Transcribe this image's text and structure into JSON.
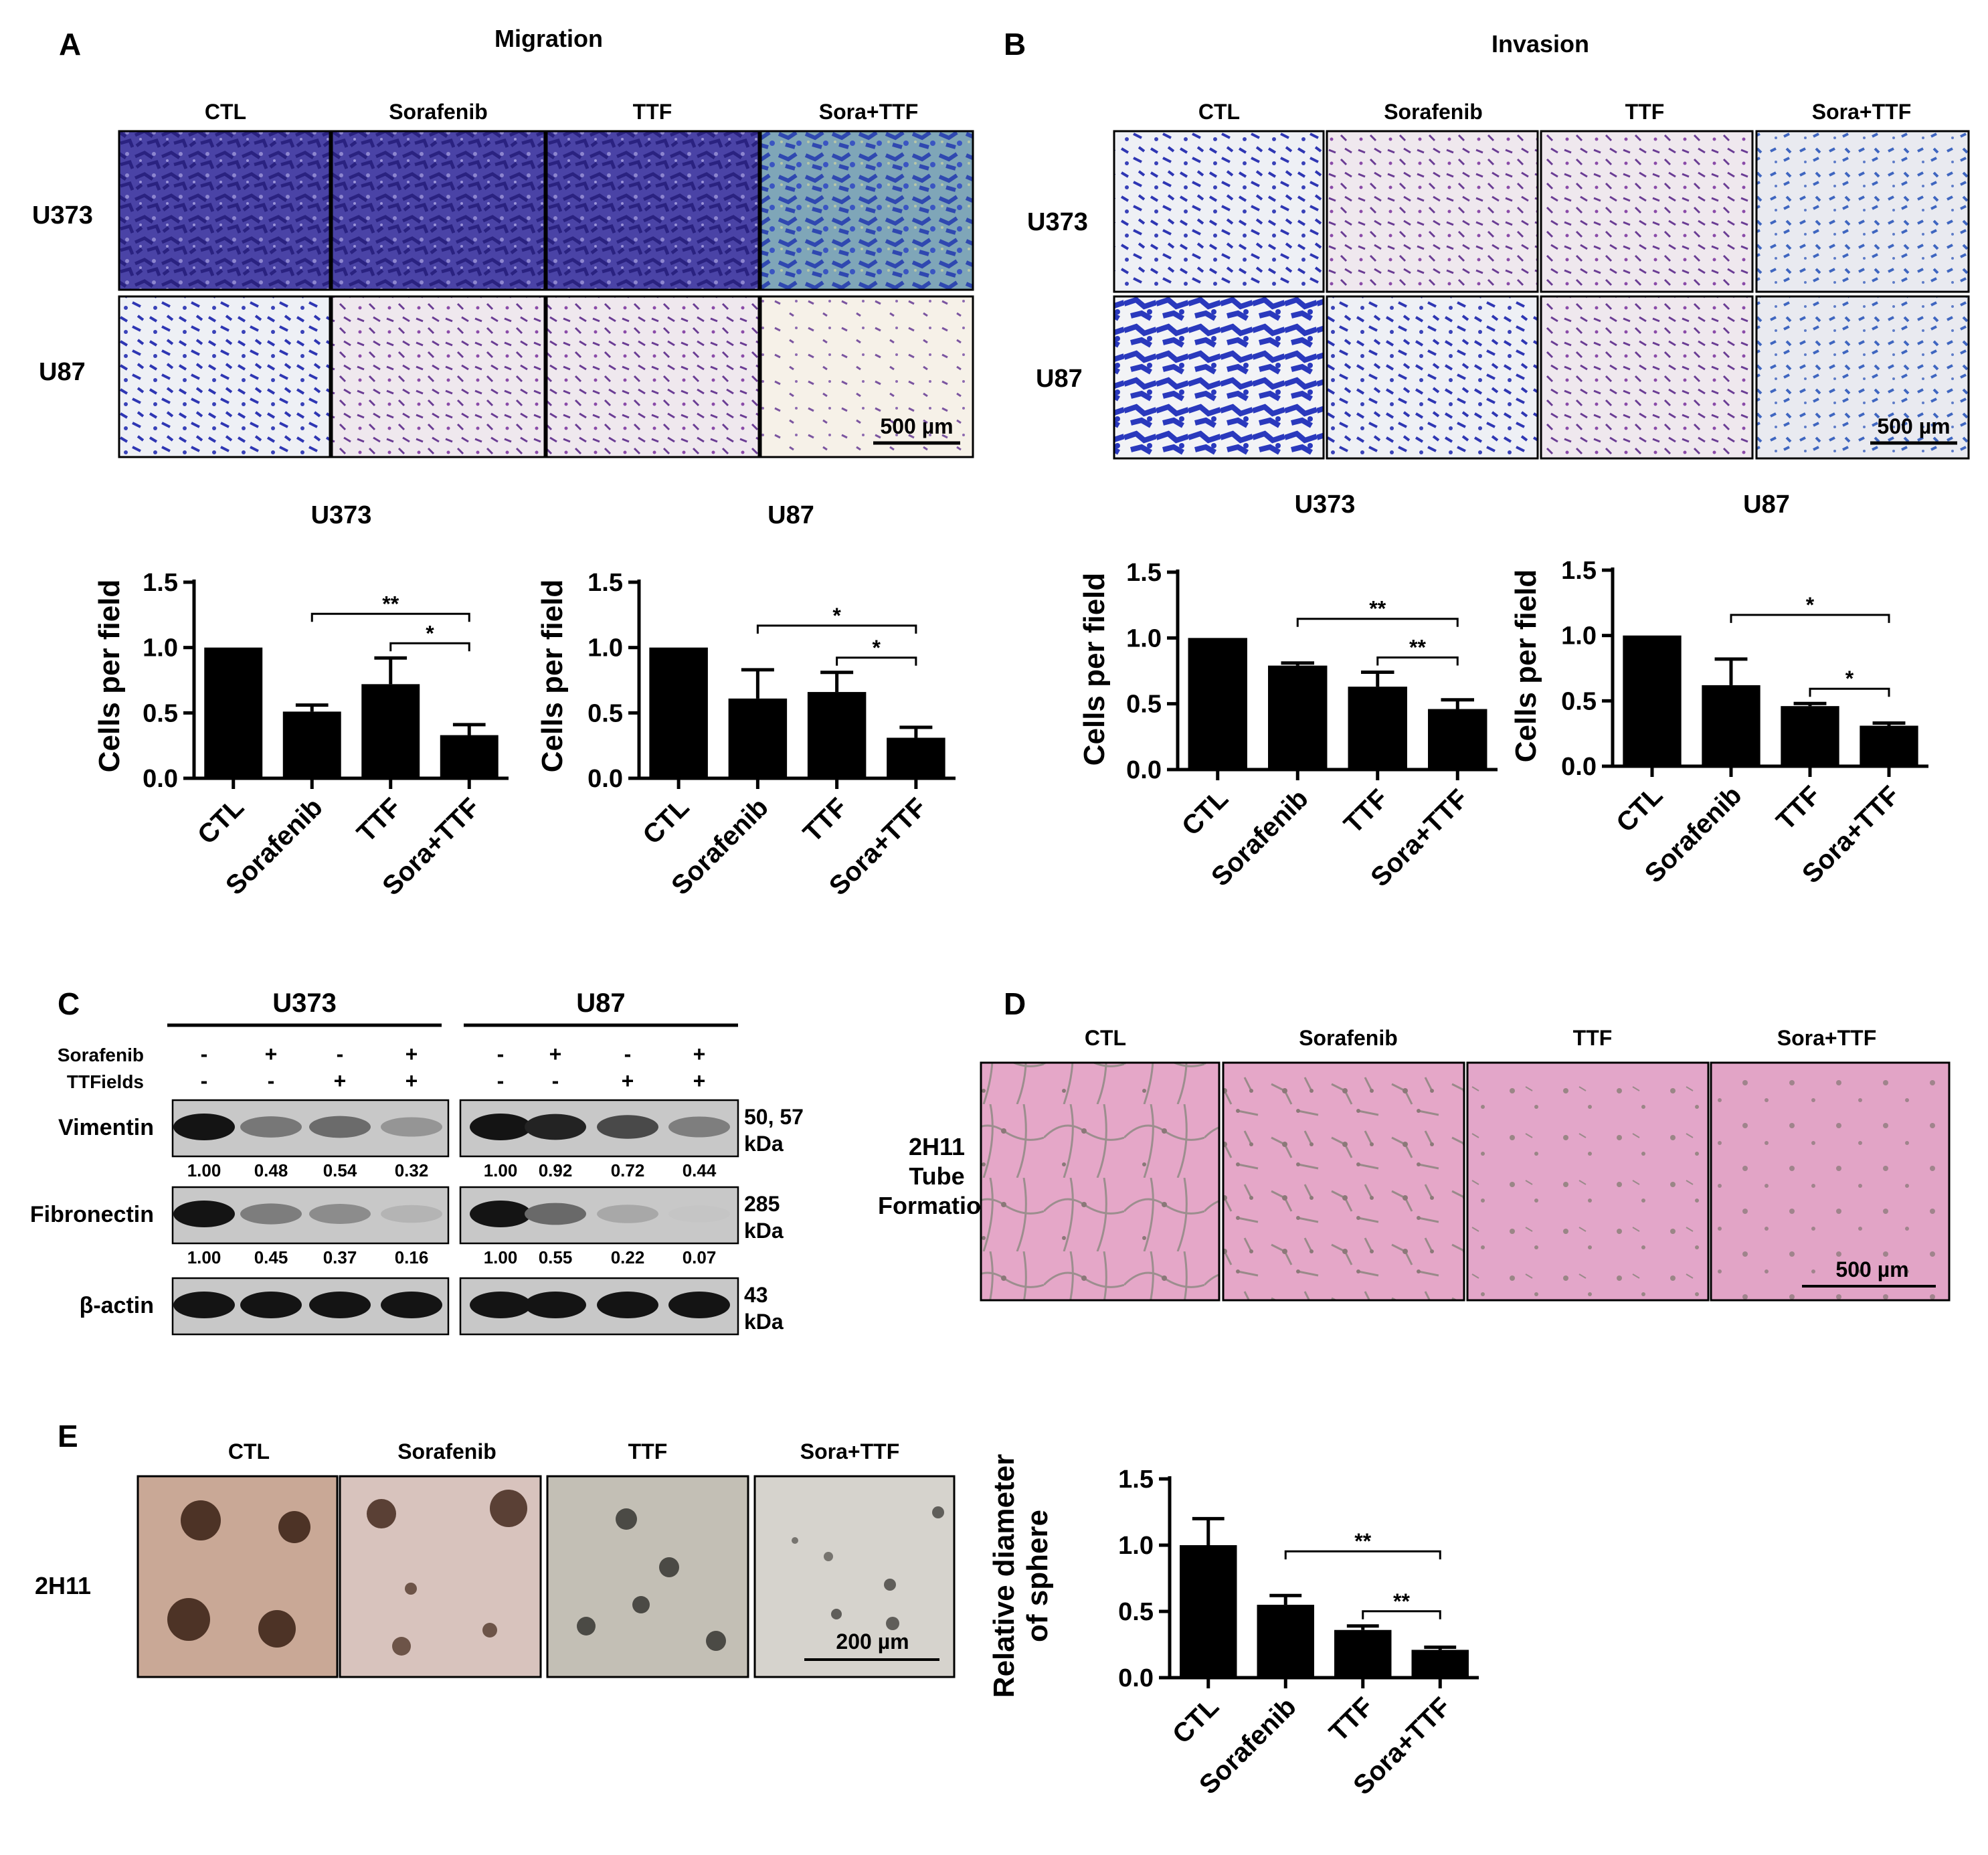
{
  "conditions": [
    "CTL",
    "Sorafenib",
    "TTF",
    "Sora+TTF"
  ],
  "panels": {
    "A": {
      "letter": "A",
      "title": "Migration",
      "rows": [
        "U373",
        "U87"
      ],
      "scale_bar": "500 µm"
    },
    "B": {
      "letter": "B",
      "title": "Invasion",
      "rows": [
        "U373",
        "U87"
      ],
      "scale_bar": "500 µm"
    },
    "C": {
      "letter": "C",
      "groups": [
        "U373",
        "U87"
      ],
      "treatment_rows": [
        {
          "label": "Sorafenib",
          "signs": [
            "-",
            "+",
            "-",
            "+",
            "-",
            "+",
            "-",
            "+"
          ]
        },
        {
          "label": "TTFields",
          "signs": [
            "-",
            "-",
            "+",
            "+",
            "-",
            "-",
            "+",
            "+"
          ]
        }
      ],
      "blots": [
        {
          "label": "Vimentin",
          "mw": [
            "50, 57",
            "kDa"
          ],
          "quant": [
            "1.00",
            "0.48",
            "0.54",
            "0.32",
            "1.00",
            "0.92",
            "0.72",
            "0.44"
          ],
          "band_intensity": [
            1.0,
            0.48,
            0.54,
            0.32,
            1.0,
            0.92,
            0.72,
            0.44
          ]
        },
        {
          "label": "Fibronectin",
          "mw": [
            "285",
            "kDa"
          ],
          "quant": [
            "1.00",
            "0.45",
            "0.37",
            "0.16",
            "1.00",
            "0.55",
            "0.22",
            "0.07"
          ],
          "band_intensity": [
            1.0,
            0.45,
            0.37,
            0.16,
            1.0,
            0.55,
            0.22,
            0.07
          ]
        },
        {
          "label": "β-actin",
          "mw": [
            "43",
            "kDa"
          ],
          "quant": [],
          "band_intensity": [
            1,
            1,
            1,
            1,
            1,
            1,
            1,
            1
          ]
        }
      ]
    },
    "D": {
      "letter": "D",
      "row_label": [
        "2H11",
        "Tube",
        "Formation"
      ],
      "scale_bar": "500 µm"
    },
    "E": {
      "letter": "E",
      "row_label": "2H11",
      "scale_bar": "200 µm"
    }
  },
  "chart_data": [
    {
      "id": "A-U373",
      "type": "bar",
      "title": "U373",
      "ylabel": "Cells per field",
      "categories": [
        "CTL",
        "Sorafenib",
        "TTF",
        "Sora+TTF"
      ],
      "values": [
        1.0,
        0.51,
        0.72,
        0.33
      ],
      "errors": [
        0,
        0.05,
        0.2,
        0.08
      ],
      "ylim": [
        0,
        1.5
      ],
      "yticks": [
        "0.0",
        "0.5",
        "1.0",
        "1.5"
      ],
      "significance": [
        {
          "from": 1,
          "to": 3,
          "label": "**"
        },
        {
          "from": 2,
          "to": 3,
          "label": "*"
        }
      ]
    },
    {
      "id": "A-U87",
      "type": "bar",
      "title": "U87",
      "ylabel": "Cells per field",
      "categories": [
        "CTL",
        "Sorafenib",
        "TTF",
        "Sora+TTF"
      ],
      "values": [
        1.0,
        0.61,
        0.66,
        0.31
      ],
      "errors": [
        0,
        0.22,
        0.15,
        0.08
      ],
      "ylim": [
        0,
        1.5
      ],
      "yticks": [
        "0.0",
        "0.5",
        "1.0",
        "1.5"
      ],
      "significance": [
        {
          "from": 1,
          "to": 3,
          "label": "*"
        },
        {
          "from": 2,
          "to": 3,
          "label": "*"
        }
      ]
    },
    {
      "id": "B-U373",
      "type": "bar",
      "title": "U373",
      "ylabel": "Cells per field",
      "categories": [
        "CTL",
        "Sorafenib",
        "TTF",
        "Sora+TTF"
      ],
      "values": [
        1.0,
        0.79,
        0.63,
        0.46
      ],
      "errors": [
        0,
        0.02,
        0.11,
        0.07
      ],
      "ylim": [
        0,
        1.5
      ],
      "yticks": [
        "0.0",
        "0.5",
        "1.0",
        "1.5"
      ],
      "significance": [
        {
          "from": 1,
          "to": 3,
          "label": "**"
        },
        {
          "from": 2,
          "to": 3,
          "label": "**"
        }
      ]
    },
    {
      "id": "B-U87",
      "type": "bar",
      "title": "U87",
      "ylabel": "Cells per field",
      "categories": [
        "CTL",
        "Sorafenib",
        "TTF",
        "Sora+TTF"
      ],
      "values": [
        1.0,
        0.62,
        0.46,
        0.31
      ],
      "errors": [
        0,
        0.2,
        0.02,
        0.02
      ],
      "ylim": [
        0,
        1.5
      ],
      "yticks": [
        "0.0",
        "0.5",
        "1.0",
        "1.5"
      ],
      "significance": [
        {
          "from": 1,
          "to": 3,
          "label": "*"
        },
        {
          "from": 2,
          "to": 3,
          "label": "*"
        }
      ]
    },
    {
      "id": "E",
      "type": "bar",
      "title": "",
      "ylabel": [
        "Relative diameter",
        "of sphere"
      ],
      "categories": [
        "CTL",
        "Sorafenib",
        "TTF",
        "Sora+TTF"
      ],
      "values": [
        1.0,
        0.55,
        0.36,
        0.21
      ],
      "errors": [
        0.2,
        0.07,
        0.03,
        0.02
      ],
      "ylim": [
        0,
        1.5
      ],
      "yticks": [
        "0.0",
        "0.5",
        "1.0",
        "1.5"
      ],
      "significance": [
        {
          "from": 1,
          "to": 3,
          "label": "**"
        },
        {
          "from": 2,
          "to": 3,
          "label": "**"
        }
      ]
    }
  ],
  "colors": {
    "migration_u373": "#5044a8",
    "migration_u87": "#e8e3ea",
    "invasion_u373": "#ddd6e3",
    "invasion_u87": "#e4e6ee",
    "tube_bg": "#e3a3c6",
    "sphere_bg": "#c7bdb6",
    "bar": "#000000"
  }
}
